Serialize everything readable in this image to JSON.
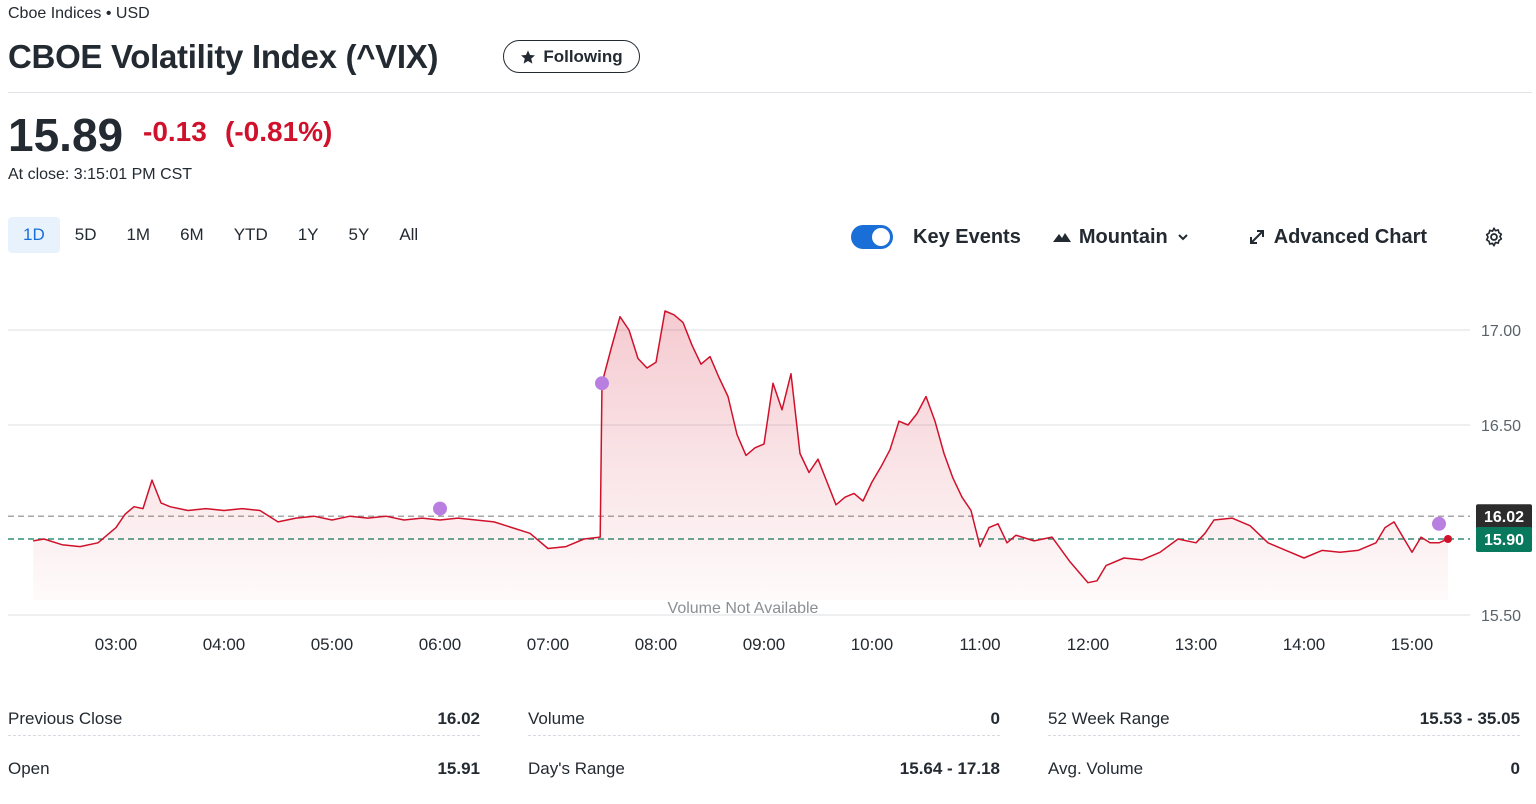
{
  "header": {
    "exchange": "Cboe Indices • USD",
    "title": "CBOE Volatility Index (^VIX)",
    "follow_button": "Following"
  },
  "quote": {
    "price": "15.89",
    "change": "-0.13",
    "change_percent": "(-0.81%)",
    "status": "At close: 3:15:01 PM CST"
  },
  "range_tabs": [
    "1D",
    "5D",
    "1M",
    "6M",
    "YTD",
    "1Y",
    "5Y",
    "All"
  ],
  "toolbar": {
    "key_events": "Key Events",
    "chart_style": "Mountain",
    "advanced": "Advanced Chart"
  },
  "chart_data": {
    "type": "area",
    "color": "#d0112b",
    "x": [
      "02:14",
      "02:20",
      "02:30",
      "02:40",
      "02:50",
      "03:00",
      "03:05",
      "03:10",
      "03:15",
      "03:20",
      "03:25",
      "03:30",
      "03:40",
      "03:50",
      "04:00",
      "04:10",
      "04:20",
      "04:30",
      "04:40",
      "04:50",
      "05:00",
      "05:10",
      "05:20",
      "05:30",
      "05:40",
      "05:50",
      "06:00",
      "06:10",
      "06:20",
      "06:30",
      "06:40",
      "06:50",
      "07:00",
      "07:10",
      "07:20",
      "07:29",
      "07:30",
      "07:35",
      "07:40",
      "07:45",
      "07:50",
      "07:55",
      "08:00",
      "08:05",
      "08:10",
      "08:15",
      "08:20",
      "08:25",
      "08:30",
      "08:35",
      "08:40",
      "08:45",
      "08:50",
      "08:55",
      "09:00",
      "09:05",
      "09:10",
      "09:15",
      "09:20",
      "09:25",
      "09:30",
      "09:35",
      "09:40",
      "09:45",
      "09:50",
      "09:55",
      "10:00",
      "10:05",
      "10:10",
      "10:15",
      "10:20",
      "10:25",
      "10:30",
      "10:35",
      "10:40",
      "10:45",
      "10:50",
      "10:55",
      "11:00",
      "11:05",
      "11:10",
      "11:15",
      "11:20",
      "11:30",
      "11:40",
      "11:50",
      "12:00",
      "12:05",
      "12:10",
      "12:20",
      "12:30",
      "12:40",
      "12:50",
      "13:00",
      "13:05",
      "13:10",
      "13:20",
      "13:30",
      "13:40",
      "13:50",
      "14:00",
      "14:10",
      "14:20",
      "14:30",
      "14:40",
      "14:45",
      "14:50",
      "15:00",
      "15:05",
      "15:10",
      "15:15",
      "15:20"
    ],
    "values": [
      15.89,
      15.9,
      15.87,
      15.86,
      15.88,
      15.96,
      16.03,
      16.07,
      16.06,
      16.21,
      16.09,
      16.07,
      16.05,
      16.06,
      16.05,
      16.06,
      16.05,
      15.99,
      16.01,
      16.02,
      16.0,
      16.02,
      16.01,
      16.02,
      16.0,
      16.01,
      16.0,
      16.01,
      16.0,
      15.99,
      15.96,
      15.93,
      15.85,
      15.86,
      15.9,
      15.91,
      16.72,
      16.9,
      17.07,
      17.0,
      16.85,
      16.8,
      16.83,
      17.1,
      17.08,
      17.04,
      16.92,
      16.82,
      16.86,
      16.75,
      16.65,
      16.45,
      16.34,
      16.38,
      16.4,
      16.72,
      16.58,
      16.77,
      16.35,
      16.25,
      16.32,
      16.2,
      16.08,
      16.12,
      16.14,
      16.1,
      16.2,
      16.28,
      16.37,
      16.52,
      16.5,
      16.56,
      16.65,
      16.52,
      16.35,
      16.22,
      16.12,
      16.05,
      15.86,
      15.96,
      15.98,
      15.88,
      15.92,
      15.89,
      15.91,
      15.78,
      15.67,
      15.68,
      15.76,
      15.8,
      15.79,
      15.83,
      15.9,
      15.88,
      15.93,
      16.0,
      16.01,
      15.97,
      15.88,
      15.84,
      15.8,
      15.84,
      15.83,
      15.84,
      15.88,
      15.96,
      15.99,
      15.83,
      15.91,
      15.88,
      15.88,
      15.9
    ],
    "xlim": [
      "02:00",
      "15:30"
    ],
    "xticks": [
      "03:00",
      "04:00",
      "05:00",
      "06:00",
      "07:00",
      "08:00",
      "09:00",
      "10:00",
      "11:00",
      "12:00",
      "13:00",
      "14:00",
      "15:00"
    ],
    "ylim": [
      15.5,
      17.25
    ],
    "yticks": [
      {
        "value": 15.5,
        "label": "15.50"
      },
      {
        "value": 16.5,
        "label": "16.50"
      },
      {
        "value": 17,
        "label": "17.00"
      }
    ],
    "grid": true,
    "reference_lines": [
      {
        "value": 16.02,
        "label": "16.02",
        "color": "#2c2c2c",
        "line_color": "#8a8a8a"
      },
      {
        "value": 15.9,
        "label": "15.90",
        "color": "#08795c",
        "line_color": "#08795c"
      }
    ],
    "events": {
      "x": [
        "06:00",
        "07:30",
        "15:15"
      ],
      "values": [
        16.06,
        16.72,
        15.98
      ],
      "color": "#b87fe0"
    },
    "annotation": "Volume Not Available"
  },
  "stats": [
    [
      {
        "label": "Previous Close",
        "value": "16.02"
      },
      {
        "label": "Open",
        "value": "15.91"
      }
    ],
    [
      {
        "label": "Volume",
        "value": "0"
      },
      {
        "label": "Day's Range",
        "value": "15.64 - 17.18"
      }
    ],
    [
      {
        "label": "52 Week Range",
        "value": "15.53 - 35.05"
      },
      {
        "label": "Avg. Volume",
        "value": "0"
      }
    ]
  ]
}
